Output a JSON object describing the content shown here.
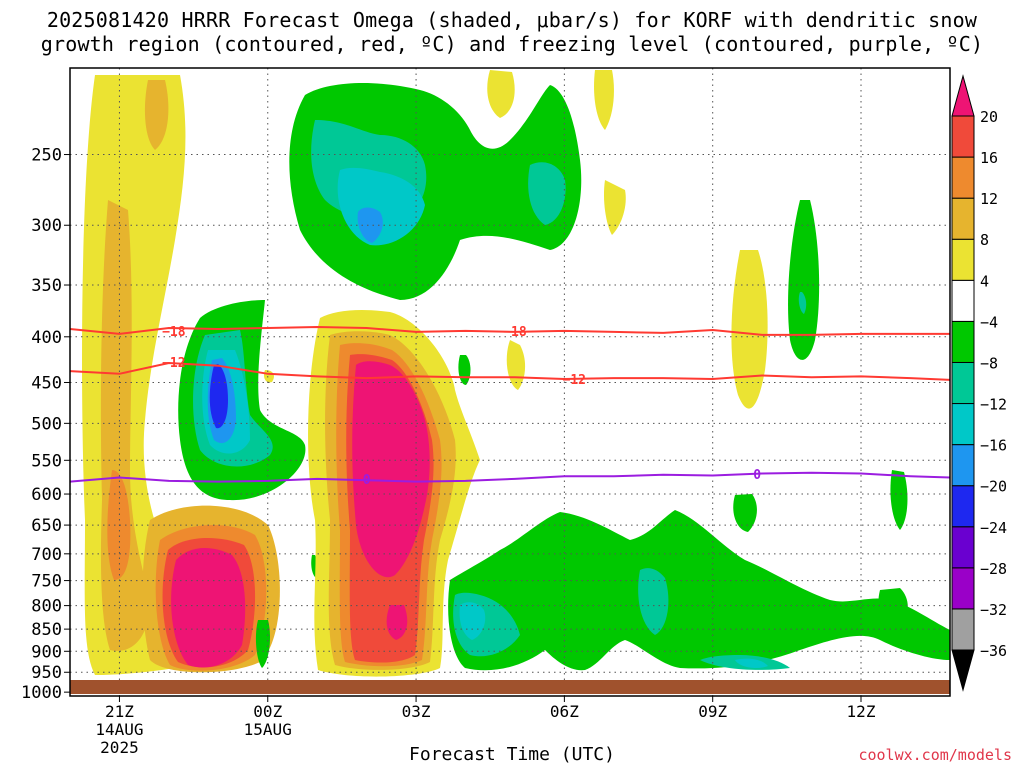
{
  "title_line1": "2025081420 HRRR Forecast Omega (shaded, μbar/s) for KORF with dendritic snow",
  "title_line2": "growth region (contoured, red, ºC) and freezing level (contoured, purple, ºC)",
  "watermark": "coolwx.com/models",
  "chart_data": {
    "type": "heatmap",
    "title": "2025081420 HRRR Forecast Omega (shaded, μbar/s) for KORF with dendritic snow growth region (contoured, red, ºC) and freezing level (contoured, purple, ºC)",
    "xlabel": "Forecast Time (UTC)",
    "ylabel": "",
    "x_ticks": [
      {
        "hour": 1,
        "label": [
          "21Z",
          "14AUG",
          "2025"
        ]
      },
      {
        "hour": 4,
        "label": [
          "00Z",
          "15AUG"
        ]
      },
      {
        "hour": 7,
        "label": [
          "03Z"
        ]
      },
      {
        "hour": 10,
        "label": [
          "06Z"
        ]
      },
      {
        "hour": 13,
        "label": [
          "09Z"
        ]
      },
      {
        "hour": 16,
        "label": [
          "12Z"
        ]
      }
    ],
    "xlim": [
      0,
      17.8
    ],
    "y_scale": "log-pressure",
    "ylim_hPa": [
      1010,
      200
    ],
    "y_ticks": [
      250,
      300,
      350,
      400,
      450,
      500,
      550,
      600,
      650,
      700,
      750,
      800,
      850,
      900,
      950,
      1000
    ],
    "colorbar": {
      "levels": [
        -36,
        -32,
        -28,
        -24,
        -20,
        -16,
        -12,
        -8,
        -4,
        4,
        8,
        12,
        16,
        20
      ],
      "labels": [
        "-36",
        "-32",
        "-28",
        "-24",
        "-20",
        "-16",
        "-12",
        "-8",
        "-4",
        "4",
        "8",
        "12",
        "16",
        "20"
      ],
      "colors": [
        "#000000",
        "#a0a0a0",
        "#9a00c8",
        "#6a00d0",
        "#1e28f0",
        "#1e96f0",
        "#00c8c8",
        "#00c896",
        "#00c800",
        "#ffffff",
        "#ebe332",
        "#e6b42e",
        "#ee8a2e",
        "#f04a3a",
        "#ee1474"
      ]
    },
    "contours": [
      {
        "name": "-18",
        "color": "#ff3a32",
        "label_points": [
          [
            2.1,
            394
          ],
          [
            9.0,
            394
          ]
        ],
        "points": [
          [
            0,
            392
          ],
          [
            1,
            397
          ],
          [
            2,
            391
          ],
          [
            3,
            392
          ],
          [
            4,
            391
          ],
          [
            5,
            390
          ],
          [
            6,
            391
          ],
          [
            7,
            395
          ],
          [
            8,
            394
          ],
          [
            9,
            395
          ],
          [
            10,
            394
          ],
          [
            11,
            395
          ],
          [
            12,
            396
          ],
          [
            13,
            393
          ],
          [
            14,
            398
          ],
          [
            15,
            398
          ],
          [
            16,
            397
          ],
          [
            17,
            397
          ],
          [
            17.8,
            397
          ]
        ]
      },
      {
        "name": "-12",
        "color": "#ff3a32",
        "label_points": [
          [
            2.1,
            427
          ],
          [
            10.2,
            446
          ]
        ],
        "points": [
          [
            0,
            437
          ],
          [
            1,
            440
          ],
          [
            2,
            428
          ],
          [
            3,
            431
          ],
          [
            4,
            440
          ],
          [
            5,
            443
          ],
          [
            6,
            445
          ],
          [
            7,
            443
          ],
          [
            8,
            444
          ],
          [
            9,
            444
          ],
          [
            10,
            446
          ],
          [
            11,
            445
          ],
          [
            12,
            445
          ],
          [
            13,
            446
          ],
          [
            14,
            442
          ],
          [
            15,
            444
          ],
          [
            16,
            443
          ],
          [
            17,
            445
          ],
          [
            17.8,
            447
          ]
        ]
      },
      {
        "name": "0",
        "color": "#9b1de0",
        "label_points": [
          [
            6.0,
            577
          ],
          [
            13.9,
            570
          ]
        ],
        "points": [
          [
            0,
            581
          ],
          [
            1,
            575
          ],
          [
            2,
            580
          ],
          [
            3,
            581
          ],
          [
            4,
            580
          ],
          [
            5,
            577
          ],
          [
            6,
            579
          ],
          [
            7,
            581
          ],
          [
            8,
            580
          ],
          [
            9,
            577
          ],
          [
            10,
            573
          ],
          [
            11,
            573
          ],
          [
            12,
            571
          ],
          [
            13,
            572
          ],
          [
            14,
            569
          ],
          [
            15,
            568
          ],
          [
            16,
            569
          ],
          [
            17,
            573
          ],
          [
            17.8,
            575
          ]
        ]
      }
    ]
  }
}
